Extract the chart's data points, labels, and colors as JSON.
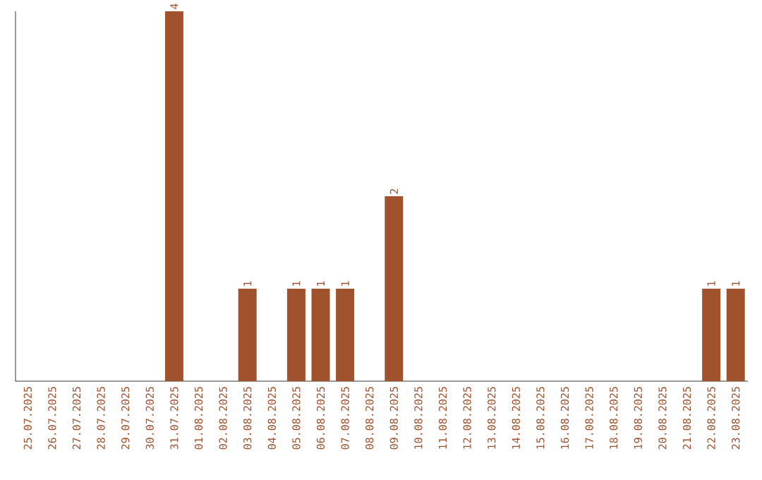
{
  "chart_data": {
    "type": "bar",
    "color": "#a0522d",
    "categories": [
      "25.07.2025",
      "26.07.2025",
      "27.07.2025",
      "28.07.2025",
      "29.07.2025",
      "30.07.2025",
      "31.07.2025",
      "01.08.2025",
      "02.08.2025",
      "03.08.2025",
      "04.08.2025",
      "05.08.2025",
      "06.08.2025",
      "07.08.2025",
      "08.08.2025",
      "09.08.2025",
      "10.08.2025",
      "11.08.2025",
      "12.08.2025",
      "13.08.2025",
      "14.08.2025",
      "15.08.2025",
      "16.08.2025",
      "17.08.2025",
      "18.08.2025",
      "19.08.2025",
      "20.08.2025",
      "21.08.2025",
      "22.08.2025",
      "23.08.2025"
    ],
    "values": [
      0,
      0,
      0,
      0,
      0,
      0,
      4,
      0,
      0,
      1,
      0,
      1,
      1,
      1,
      0,
      2,
      0,
      0,
      0,
      0,
      0,
      0,
      0,
      0,
      0,
      0,
      0,
      0,
      1,
      1
    ],
    "value_labels": [
      null,
      null,
      null,
      null,
      null,
      null,
      "4",
      null,
      null,
      "1",
      null,
      "1",
      "1",
      "1",
      null,
      "2",
      null,
      null,
      null,
      null,
      null,
      null,
      null,
      null,
      null,
      null,
      null,
      null,
      "1",
      "1"
    ],
    "tick_labels": "x"
  }
}
